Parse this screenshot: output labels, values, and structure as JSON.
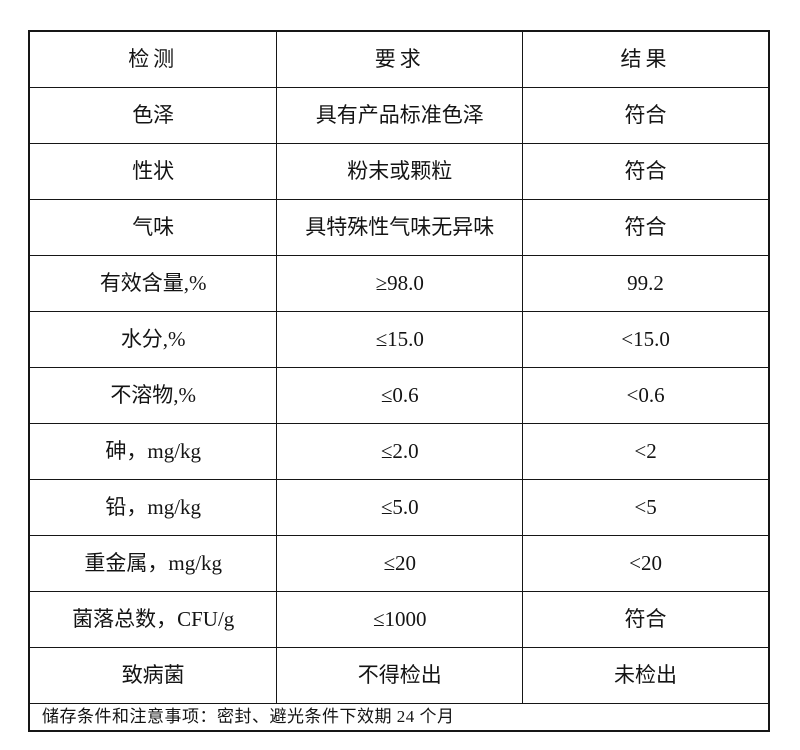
{
  "table": {
    "headers": [
      "检测",
      "要求",
      "结果"
    ],
    "rows": [
      {
        "item": "色泽",
        "requirement": "具有产品标准色泽",
        "result": "符合"
      },
      {
        "item": "性状",
        "requirement": "粉末或颗粒",
        "result": "符合"
      },
      {
        "item": "气味",
        "requirement": "具特殊性气味无异味",
        "result": "符合"
      },
      {
        "item": "有效含量,%",
        "requirement": "≥98.0",
        "result": "99.2"
      },
      {
        "item": "水分,%",
        "requirement": "≤15.0",
        "result": "<15.0"
      },
      {
        "item": "不溶物,%",
        "requirement": "≤0.6",
        "result": "<0.6"
      },
      {
        "item": "砷，mg/kg",
        "requirement": "≤2.0",
        "result": "<2"
      },
      {
        "item": "铅，mg/kg",
        "requirement": "≤5.0",
        "result": "<5"
      },
      {
        "item": "重金属，mg/kg",
        "requirement": "≤20",
        "result": "<20"
      },
      {
        "item": "菌落总数，CFU/g",
        "requirement": "≤1000",
        "result": "符合"
      },
      {
        "item": "致病菌",
        "requirement": "不得检出",
        "result": "未检出"
      }
    ],
    "footer": "储存条件和注意事项：密封、避光条件下效期 24 个月"
  }
}
